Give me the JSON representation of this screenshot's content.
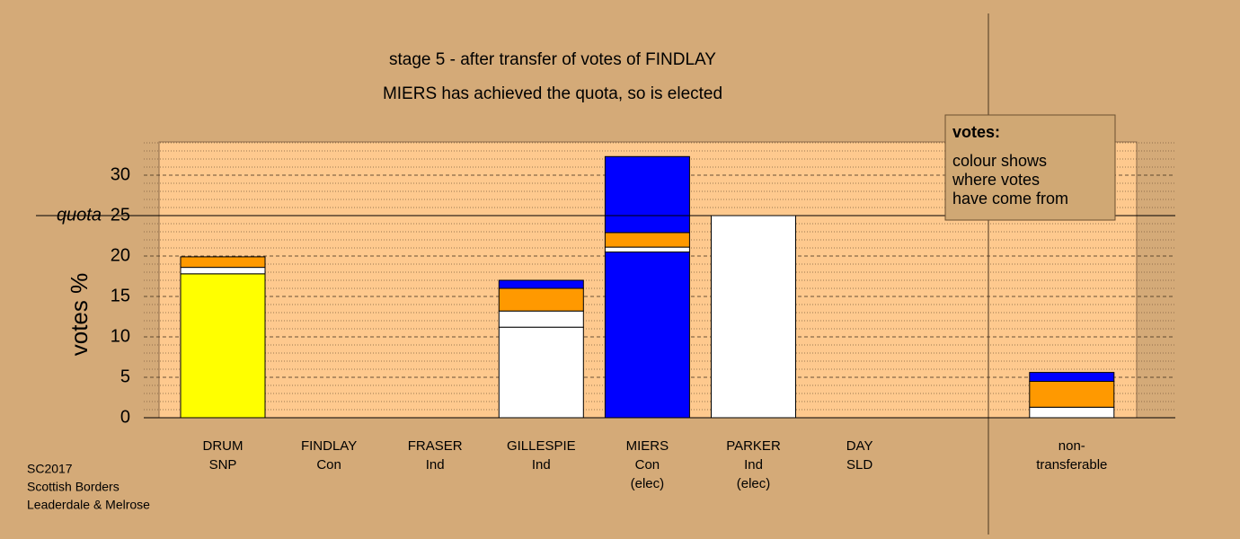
{
  "chart_data": {
    "type": "stacked-bar",
    "title": "stage 5 - after transfer of votes of FINDLAY",
    "subtitle": "MIERS has achieved the quota, so is elected",
    "ylabel": "votes %",
    "categories": [
      [
        "DRUM",
        "SNP"
      ],
      [
        "FINDLAY",
        "Con"
      ],
      [
        "FRASER",
        "Ind"
      ],
      [
        "GILLESPIE",
        "Ind"
      ],
      [
        "MIERS",
        "Con",
        "(elec)"
      ],
      [
        "PARKER",
        "Ind",
        "(elec)"
      ],
      [
        "DAY",
        "SLD"
      ],
      null,
      [
        "non-",
        "transferable"
      ]
    ],
    "stacks": [
      [
        {
          "color": "#ffff00",
          "value": 17.8
        },
        {
          "color": "#ffffff",
          "value": 0.8
        },
        {
          "color": "#ff9900",
          "value": 1.3
        }
      ],
      [],
      [],
      [
        {
          "color": "#ffffff",
          "value": 11.2
        },
        {
          "color": "#ffffff",
          "value": 2.0
        },
        {
          "color": "#ff9900",
          "value": 2.8
        },
        {
          "color": "#0000ff",
          "value": 1.0
        }
      ],
      [
        {
          "color": "#0000ff",
          "value": 20.5
        },
        {
          "color": "#ffffff",
          "value": 0.6
        },
        {
          "color": "#ff9900",
          "value": 1.8
        },
        {
          "color": "#0000ff",
          "value": 9.4
        }
      ],
      [
        {
          "color": "#ffffff",
          "value": 25.0
        }
      ],
      [],
      [],
      [
        {
          "color": "#ffffff",
          "value": 1.3
        },
        {
          "color": "#ff9900",
          "value": 3.2
        },
        {
          "color": "#0000ff",
          "value": 1.1
        }
      ]
    ],
    "ylim": [
      0,
      34
    ],
    "yticks": [
      0,
      5,
      10,
      15,
      20,
      25,
      30
    ],
    "minor_yticks": [
      1,
      2,
      3,
      4,
      6,
      7,
      8,
      9,
      11,
      12,
      13,
      14,
      16,
      17,
      18,
      19,
      21,
      22,
      23,
      24,
      26,
      27,
      28,
      29,
      31,
      32,
      33,
      34
    ],
    "grid": true,
    "quota": 25,
    "quota_label": "quota",
    "legend": {
      "title": "votes:",
      "lines": [
        "colour shows",
        "where votes",
        "have come from"
      ]
    },
    "footer": [
      "SC2017",
      "Scottish Borders",
      "Leaderdale & Melrose"
    ]
  }
}
